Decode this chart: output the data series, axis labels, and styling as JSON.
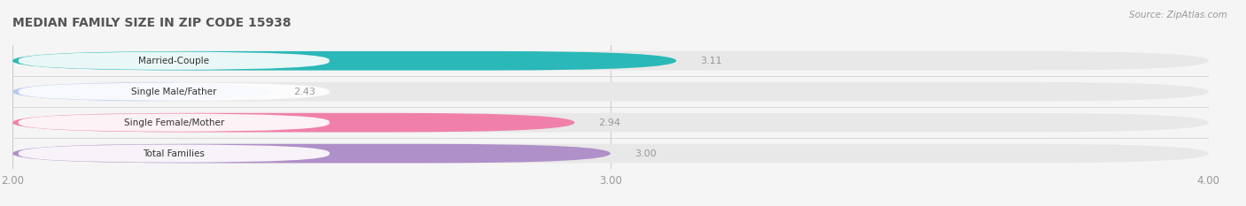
{
  "title": "MEDIAN FAMILY SIZE IN ZIP CODE 15938",
  "source": "Source: ZipAtlas.com",
  "categories": [
    "Married-Couple",
    "Single Male/Father",
    "Single Female/Mother",
    "Total Families"
  ],
  "values": [
    3.11,
    2.43,
    2.94,
    3.0
  ],
  "bar_colors": [
    "#2ab8b8",
    "#b8c8f0",
    "#f080aa",
    "#b090c8"
  ],
  "bar_bg_color": "#e8e8e8",
  "xlim": [
    2.0,
    4.0
  ],
  "xticks": [
    2.0,
    3.0,
    4.0
  ],
  "xtick_labels": [
    "2.00",
    "3.00",
    "4.00"
  ],
  "label_color": "#999999",
  "title_color": "#555555",
  "value_color": "#999999",
  "bg_color": "#f5f5f5",
  "bar_height": 0.62,
  "figsize": [
    14.06,
    2.33
  ],
  "dpi": 100
}
